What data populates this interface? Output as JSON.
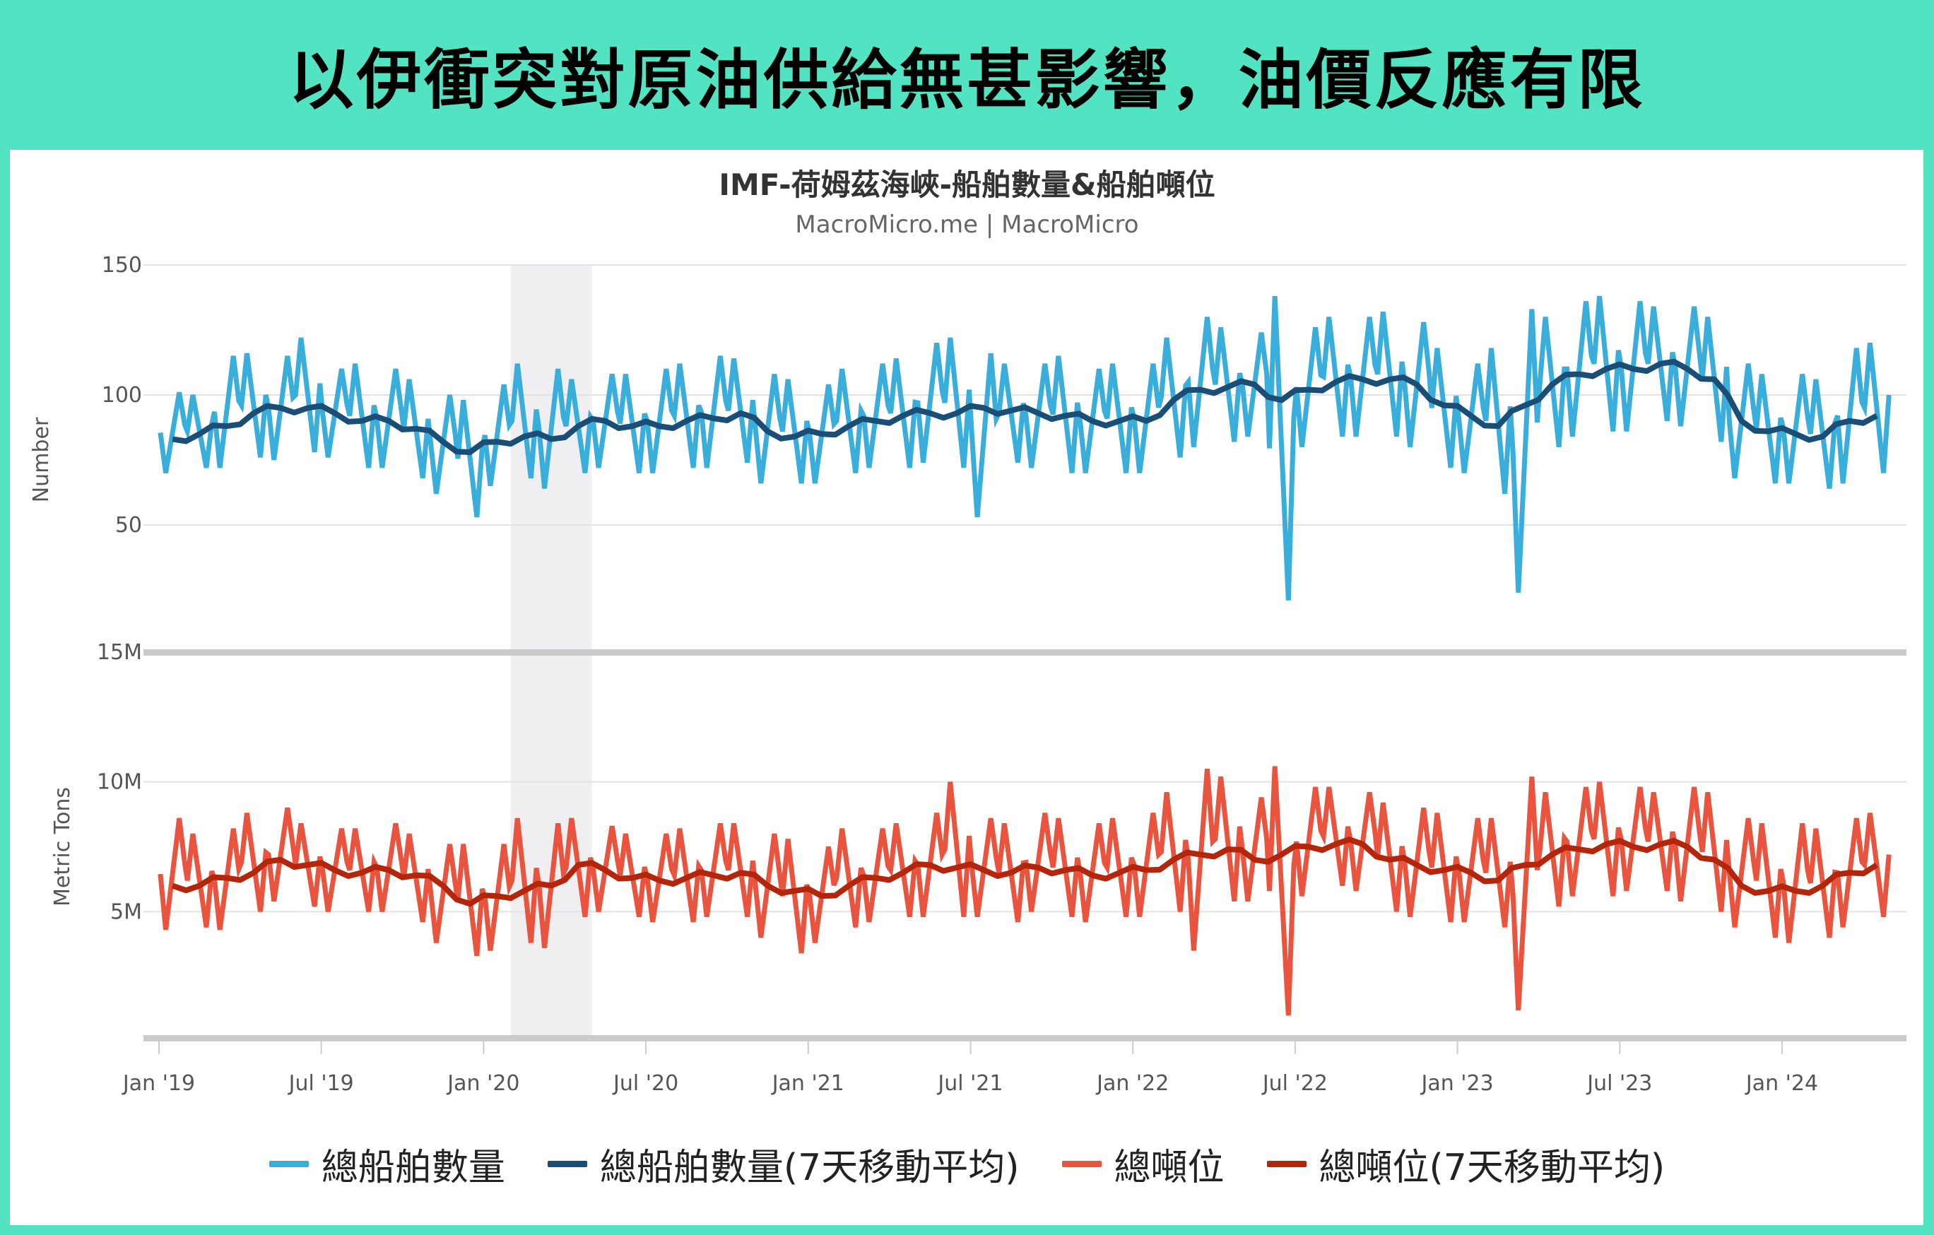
{
  "header": {
    "title": "以伊衝突對原油供給無甚影響，油價反應有限"
  },
  "chart_data": {
    "type": "line",
    "title": "IMF-荷姆茲海峽-船舶數量&船舶噸位",
    "subtitle": "MacroMicro.me | MacroMicro",
    "x_start": "2019-01",
    "x_end": "2024-04",
    "x_resolution": "monthly",
    "x_ticks": [
      "Jan '19",
      "Jul '19",
      "Jan '20",
      "Jul '20",
      "Jan '21",
      "Jul '21",
      "Jan '22",
      "Jul '22",
      "Jan '23",
      "Jul '23",
      "Jan '24"
    ],
    "shaded_range": [
      "2020-02",
      "2020-04"
    ],
    "panes": [
      {
        "ylabel": "Number",
        "ylim": [
          0,
          150
        ],
        "y_ticks": [
          "150",
          "100",
          "50"
        ],
        "y_tick_values": [
          150,
          100,
          50
        ],
        "series": [
          {
            "name": "總船舶數量",
            "color": "#3aaedb",
            "kind": "raw",
            "high": [
              101,
              100,
              115,
              116,
              115,
              122,
              110,
              112,
              110,
              106,
              100,
              98,
              104,
              112,
              110,
              106,
              108,
              108,
              110,
              112,
              115,
              114,
              108,
              106,
              104,
              110,
              112,
              114,
              120,
              122,
              116,
              112,
              112,
              115,
              110,
              112,
              112,
              122,
              130,
              126,
              124,
              138,
              126,
              130,
              130,
              132,
              128,
              118,
              112,
              118,
              133,
              130,
              136,
              138,
              136,
              134,
              134,
              130,
              112,
              108,
              108,
              106,
              118,
              120
            ],
            "low": [
              70,
              72,
              72,
              76,
              75,
              78,
              76,
              72,
              72,
              68,
              62,
              53,
              65,
              68,
              64,
              70,
              72,
              70,
              70,
              72,
              72,
              74,
              66,
              66,
              66,
              70,
              72,
              72,
              74,
              72,
              53,
              74,
              72,
              70,
              70,
              70,
              70,
              76,
              80,
              82,
              84,
              21,
              80,
              84,
              84,
              84,
              80,
              72,
              70,
              62,
              24,
              80,
              84,
              86,
              86,
              90,
              88,
              82,
              68,
              66,
              66,
              64,
              66,
              70
            ]
          },
          {
            "name": "總船舶數量(7天移動平均)",
            "color": "#1a4e77",
            "kind": "ma",
            "values": [
              83,
              85,
              88,
              93,
              95,
              95,
              93,
              90,
              90,
              87,
              82,
              78,
              82,
              84,
              83,
              88,
              90,
              88,
              88,
              90,
              91,
              93,
              86,
              84,
              85,
              88,
              90,
              92,
              93,
              93,
              95,
              94,
              93,
              92,
              90,
              90,
              90,
              98,
              102,
              103,
              104,
              98,
              102,
              105,
              106,
              106,
              104,
              96,
              92,
              88,
              96,
              104,
              108,
              110,
              110,
              112,
              110,
              106,
              90,
              86,
              85,
              84,
              90,
              92
            ]
          }
        ]
      },
      {
        "ylabel": "Metric Tons",
        "ylim": [
          0,
          15
        ],
        "unit": "M",
        "y_ticks": [
          "15M",
          "10M",
          "5M"
        ],
        "y_tick_values": [
          15,
          10,
          5
        ],
        "series": [
          {
            "name": "總噸位",
            "color": "#e9543f",
            "kind": "raw",
            "high": [
              8.6,
              8.0,
              8.2,
              8.8,
              9.0,
              8.4,
              8.2,
              8.2,
              8.4,
              8.0,
              7.6,
              7.6,
              7.6,
              8.6,
              8.4,
              8.6,
              8.3,
              8.0,
              8.0,
              8.2,
              8.4,
              8.4,
              8.0,
              7.8,
              7.5,
              8.2,
              8.2,
              8.4,
              8.8,
              10.0,
              8.6,
              8.4,
              8.8,
              8.6,
              8.4,
              8.6,
              8.8,
              9.6,
              10.5,
              10.2,
              9.4,
              10.6,
              9.8,
              9.8,
              9.6,
              9.2,
              9.0,
              8.8,
              8.6,
              8.6,
              10.2,
              9.6,
              9.8,
              10.0,
              9.8,
              9.6,
              9.8,
              9.6,
              8.6,
              8.4,
              8.4,
              8.2,
              8.6,
              8.8
            ],
            "low": [
              4.3,
              4.4,
              4.3,
              5.0,
              5.4,
              5.2,
              5.0,
              5.0,
              5.0,
              4.6,
              3.8,
              3.3,
              3.5,
              3.8,
              3.6,
              4.8,
              5.0,
              4.8,
              4.6,
              4.6,
              4.8,
              4.8,
              4.0,
              3.4,
              3.8,
              4.4,
              4.6,
              4.8,
              4.8,
              4.8,
              4.8,
              4.6,
              5.0,
              4.8,
              4.6,
              4.8,
              4.8,
              5.0,
              3.5,
              5.4,
              5.4,
              1.0,
              5.6,
              6.0,
              5.8,
              5.0,
              4.8,
              4.6,
              4.6,
              4.4,
              1.2,
              5.2,
              5.6,
              5.6,
              5.8,
              5.8,
              5.4,
              5.0,
              4.4,
              4.0,
              3.8,
              4.0,
              4.4,
              4.8
            ]
          },
          {
            "name": "總噸位(7天移動平均)",
            "color": "#b3260c",
            "kind": "ma",
            "values": [
              6.0,
              6.0,
              6.3,
              6.5,
              7.0,
              6.8,
              6.6,
              6.5,
              6.6,
              6.4,
              6.0,
              5.3,
              5.6,
              5.8,
              6.0,
              6.8,
              6.6,
              6.3,
              6.2,
              6.3,
              6.4,
              6.5,
              6.0,
              5.8,
              5.6,
              6.0,
              6.3,
              6.5,
              6.8,
              6.7,
              6.6,
              6.5,
              6.7,
              6.6,
              6.4,
              6.5,
              6.6,
              7.0,
              7.2,
              7.4,
              7.0,
              7.2,
              7.5,
              7.6,
              7.6,
              7.0,
              6.8,
              6.6,
              6.5,
              6.2,
              6.8,
              7.2,
              7.4,
              7.6,
              7.5,
              7.6,
              7.5,
              7.0,
              6.0,
              5.8,
              5.8,
              6.0,
              6.5,
              6.8
            ]
          }
        ]
      }
    ],
    "legend": [
      "總船舶數量",
      "總船舶數量(7天移動平均)",
      "總噸位",
      "總噸位(7天移動平均)"
    ],
    "legend_position": "bottom",
    "grid": true
  }
}
